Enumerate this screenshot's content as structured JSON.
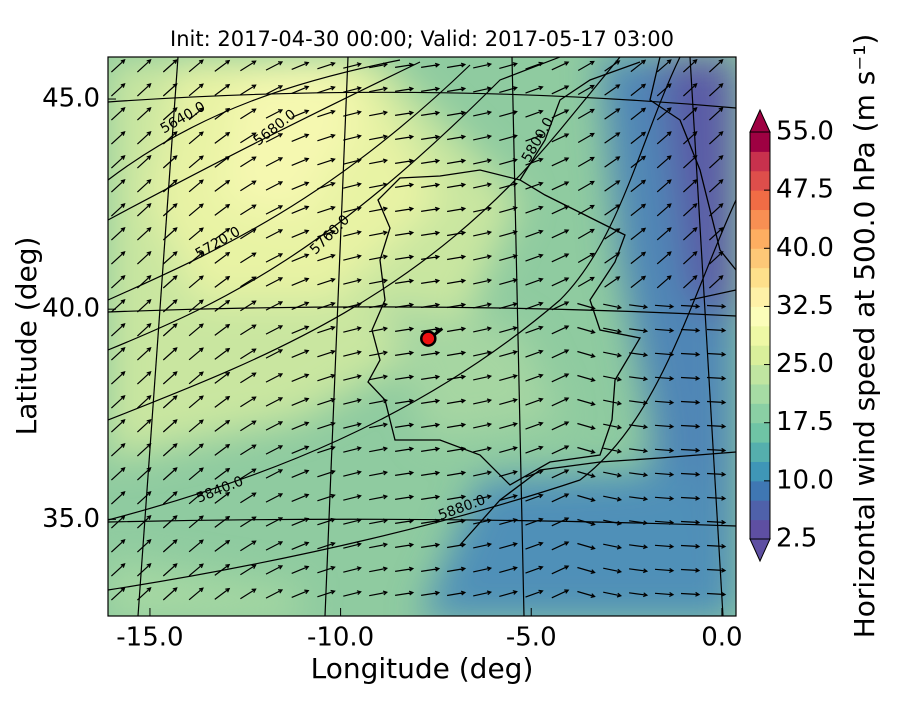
{
  "chart_data": {
    "type": "map",
    "title": "Init: 2017-04-30 00:00; Valid: 2017-05-17 03:00",
    "xlabel": "Longitude (deg)",
    "ylabel": "Latitude (deg)",
    "xlim": [
      -16.1,
      0.37
    ],
    "ylim": [
      32.7,
      46.0
    ],
    "xticks": [
      {
        "value": -15,
        "label": "-15.0"
      },
      {
        "value": -10,
        "label": "-10.0"
      },
      {
        "value": -5,
        "label": "-5.0"
      },
      {
        "value": 0,
        "label": "0.0"
      }
    ],
    "yticks": [
      {
        "value": 35,
        "label": "35.0"
      },
      {
        "value": 40,
        "label": "40.0"
      },
      {
        "value": 45,
        "label": "45.0"
      }
    ],
    "marker": {
      "lon": -7.7,
      "lat": 39.3,
      "color": "#ee1111"
    },
    "contour_labels": [
      "5640.0",
      "5680.0",
      "5720.0",
      "5760.0",
      "5800.0",
      "5840.0",
      "5880.0",
      "5880.0"
    ],
    "colorbar": {
      "label": "Horizontal wind speed at 500.0 hPa (m s⁻¹)",
      "lim": [
        2.5,
        55
      ],
      "ticks": [
        2.5,
        {
          "value": 10,
          "label": "10.0"
        },
        17.5,
        {
          "value": 25,
          "label": "25.0"
        },
        32.5,
        {
          "value": 40,
          "label": "40.0"
        },
        47.5,
        {
          "value": 55,
          "label": "55.0"
        }
      ],
      "colors": [
        "#5e4fa2",
        "#4f61aa",
        "#3f77b3",
        "#3f96b7",
        "#55afad",
        "#6fc4a5",
        "#8acfa4",
        "#a6dba4",
        "#c0e5a1",
        "#d9ef9b",
        "#eef8a5",
        "#fbfdb9",
        "#fef1a7",
        "#fee08b",
        "#fdc877",
        "#fdae61",
        "#f88f53",
        "#f06c45",
        "#de4e4b",
        "#c8314d",
        "#9e0142"
      ]
    }
  }
}
